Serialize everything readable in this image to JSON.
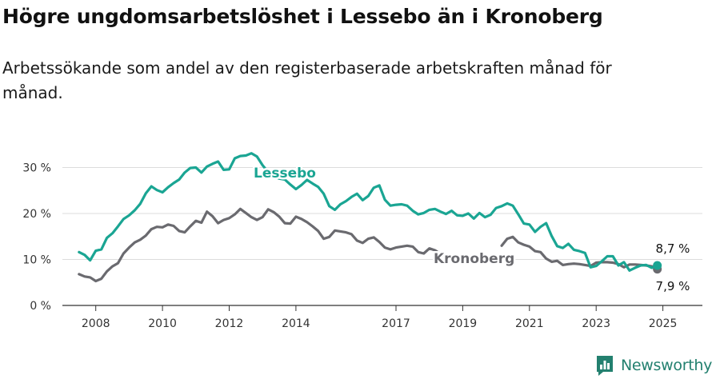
{
  "header": {
    "title": "Högre ungdomsarbetslöshet i Lessebo än i Kronoberg",
    "subtitle": "Arbetssökande som andel av den registerbaserade arbetskraften månad för månad."
  },
  "brand": {
    "name": "Newsworthy",
    "color": "#23806f"
  },
  "chart_data": {
    "type": "line",
    "title": "Högre ungdomsarbetslöshet i Lessebo än i Kronoberg",
    "subtitle": "Arbetssökande som andel av den registerbaserade arbetskraften månad för månad.",
    "xlabel": "",
    "ylabel": "",
    "x_ticks": [
      "2008",
      "2010",
      "2012",
      "2014",
      "2017",
      "2019",
      "2021",
      "2023",
      "2025"
    ],
    "y_ticks": [
      "0 %",
      "10 %",
      "20 %",
      "30 %"
    ],
    "ylim": [
      0,
      35
    ],
    "grid": "horizontal",
    "legend": "direct labels on lines",
    "series": [
      {
        "name": "Lessebo",
        "color": "#1aa593",
        "end_label": "8,7 %",
        "points": [
          [
            "2008-01",
            11.6
          ],
          [
            "2008-03",
            11.0
          ],
          [
            "2008-05",
            9.8
          ],
          [
            "2008-07",
            11.9
          ],
          [
            "2008-09",
            12.2
          ],
          [
            "2008-11",
            14.7
          ],
          [
            "2009-01",
            15.7
          ],
          [
            "2009-03",
            17.2
          ],
          [
            "2009-05",
            18.8
          ],
          [
            "2009-07",
            19.6
          ],
          [
            "2009-09",
            20.7
          ],
          [
            "2009-11",
            22.1
          ],
          [
            "2010-01",
            24.4
          ],
          [
            "2010-03",
            25.9
          ],
          [
            "2010-05",
            25.1
          ],
          [
            "2010-07",
            24.6
          ],
          [
            "2010-09",
            25.7
          ],
          [
            "2010-11",
            26.6
          ],
          [
            "2011-01",
            27.4
          ],
          [
            "2011-03",
            28.9
          ],
          [
            "2011-05",
            29.9
          ],
          [
            "2011-07",
            30.0
          ],
          [
            "2011-09",
            28.9
          ],
          [
            "2011-11",
            30.2
          ],
          [
            "2012-01",
            30.8
          ],
          [
            "2012-03",
            31.3
          ],
          [
            "2012-05",
            29.5
          ],
          [
            "2012-07",
            29.6
          ],
          [
            "2012-09",
            32.0
          ],
          [
            "2012-11",
            32.5
          ],
          [
            "2013-01",
            32.6
          ],
          [
            "2013-03",
            33.1
          ],
          [
            "2013-05",
            32.4
          ],
          [
            "2013-07",
            30.5
          ],
          [
            "2013-09",
            29.0
          ],
          [
            "2013-11",
            28.0
          ],
          [
            "2014-01",
            27.6
          ],
          [
            "2014-03",
            27.4
          ],
          [
            "2014-05",
            26.3
          ],
          [
            "2014-07",
            25.3
          ],
          [
            "2014-09",
            26.2
          ],
          [
            "2014-11",
            27.3
          ],
          [
            "2015-01",
            26.5
          ],
          [
            "2015-03",
            25.8
          ],
          [
            "2015-05",
            24.3
          ],
          [
            "2015-07",
            21.6
          ],
          [
            "2015-09",
            20.8
          ],
          [
            "2015-11",
            22.0
          ],
          [
            "2016-01",
            22.7
          ],
          [
            "2016-03",
            23.6
          ],
          [
            "2016-05",
            24.3
          ],
          [
            "2016-07",
            22.9
          ],
          [
            "2016-09",
            23.8
          ],
          [
            "2016-11",
            25.6
          ],
          [
            "2017-01",
            26.1
          ],
          [
            "2017-03",
            23.0
          ],
          [
            "2017-05",
            21.7
          ],
          [
            "2017-07",
            21.9
          ],
          [
            "2017-09",
            22.0
          ],
          [
            "2017-11",
            21.7
          ],
          [
            "2018-01",
            20.6
          ],
          [
            "2018-03",
            19.8
          ],
          [
            "2018-05",
            20.1
          ],
          [
            "2018-07",
            20.8
          ],
          [
            "2018-09",
            21.0
          ],
          [
            "2018-11",
            20.4
          ],
          [
            "2019-01",
            19.9
          ],
          [
            "2019-03",
            20.6
          ],
          [
            "2019-05",
            19.6
          ],
          [
            "2019-07",
            19.5
          ],
          [
            "2019-09",
            20.0
          ],
          [
            "2019-11",
            18.9
          ],
          [
            "2020-01",
            20.1
          ],
          [
            "2020-03",
            19.2
          ],
          [
            "2020-05",
            19.7
          ],
          [
            "2020-07",
            21.2
          ],
          [
            "2020-09",
            21.6
          ],
          [
            "2020-11",
            22.2
          ],
          [
            "2021-01",
            21.7
          ],
          [
            "2021-03",
            19.8
          ],
          [
            "2021-05",
            17.8
          ],
          [
            "2021-07",
            17.6
          ],
          [
            "2021-09",
            16.0
          ],
          [
            "2021-11",
            17.1
          ],
          [
            "2022-01",
            17.9
          ],
          [
            "2022-03",
            15.1
          ],
          [
            "2022-05",
            12.9
          ],
          [
            "2022-07",
            12.5
          ],
          [
            "2022-09",
            13.4
          ],
          [
            "2022-11",
            12.1
          ],
          [
            "2023-01",
            11.8
          ],
          [
            "2023-03",
            11.4
          ],
          [
            "2023-05",
            8.3
          ],
          [
            "2023-07",
            8.6
          ],
          [
            "2023-09",
            9.6
          ],
          [
            "2023-11",
            10.7
          ],
          [
            "2024-01",
            10.7
          ],
          [
            "2024-03",
            8.7
          ],
          [
            "2024-05",
            9.4
          ],
          [
            "2024-07",
            7.6
          ],
          [
            "2024-09",
            8.2
          ],
          [
            "2024-11",
            8.7
          ],
          [
            "2025-01",
            8.8
          ],
          [
            "2025-03",
            8.2
          ],
          [
            "2025-05",
            8.7
          ]
        ]
      },
      {
        "name": "Kronoberg",
        "color": "#6a6a6f",
        "end_label": "7,9 %",
        "points": [
          [
            "2008-01",
            6.8
          ],
          [
            "2008-03",
            6.3
          ],
          [
            "2008-05",
            6.1
          ],
          [
            "2008-07",
            5.3
          ],
          [
            "2008-09",
            5.8
          ],
          [
            "2008-11",
            7.4
          ],
          [
            "2009-01",
            8.5
          ],
          [
            "2009-03",
            9.2
          ],
          [
            "2009-05",
            11.3
          ],
          [
            "2009-07",
            12.6
          ],
          [
            "2009-09",
            13.7
          ],
          [
            "2009-11",
            14.3
          ],
          [
            "2010-01",
            15.2
          ],
          [
            "2010-03",
            16.6
          ],
          [
            "2010-05",
            17.1
          ],
          [
            "2010-07",
            17.0
          ],
          [
            "2010-09",
            17.6
          ],
          [
            "2010-11",
            17.3
          ],
          [
            "2011-01",
            16.2
          ],
          [
            "2011-03",
            15.9
          ],
          [
            "2011-05",
            17.2
          ],
          [
            "2011-07",
            18.4
          ],
          [
            "2011-09",
            18.0
          ],
          [
            "2011-11",
            20.4
          ],
          [
            "2012-01",
            19.4
          ],
          [
            "2012-03",
            17.9
          ],
          [
            "2012-05",
            18.6
          ],
          [
            "2012-07",
            19.0
          ],
          [
            "2012-09",
            19.8
          ],
          [
            "2012-11",
            21.0
          ],
          [
            "2013-01",
            20.1
          ],
          [
            "2013-03",
            19.2
          ],
          [
            "2013-05",
            18.6
          ],
          [
            "2013-07",
            19.2
          ],
          [
            "2013-09",
            20.9
          ],
          [
            "2013-11",
            20.3
          ],
          [
            "2014-01",
            19.3
          ],
          [
            "2014-03",
            17.9
          ],
          [
            "2014-05",
            17.8
          ],
          [
            "2014-07",
            19.3
          ],
          [
            "2014-09",
            18.8
          ],
          [
            "2014-11",
            18.1
          ],
          [
            "2015-01",
            17.2
          ],
          [
            "2015-03",
            16.2
          ],
          [
            "2015-05",
            14.5
          ],
          [
            "2015-07",
            14.9
          ],
          [
            "2015-09",
            16.3
          ],
          [
            "2015-11",
            16.1
          ],
          [
            "2016-01",
            15.9
          ],
          [
            "2016-03",
            15.5
          ],
          [
            "2016-05",
            14.1
          ],
          [
            "2016-07",
            13.6
          ],
          [
            "2016-09",
            14.5
          ],
          [
            "2016-11",
            14.8
          ],
          [
            "2017-01",
            13.8
          ],
          [
            "2017-03",
            12.6
          ],
          [
            "2017-05",
            12.2
          ],
          [
            "2017-07",
            12.6
          ],
          [
            "2017-09",
            12.8
          ],
          [
            "2017-11",
            13.0
          ],
          [
            "2018-01",
            12.8
          ],
          [
            "2018-03",
            11.6
          ],
          [
            "2018-05",
            11.3
          ],
          [
            "2018-07",
            12.4
          ],
          [
            "2018-09",
            12.0
          ],
          [
            "2018-11",
            11.2
          ],
          [
            "2019-01",
            11.0
          ],
          [
            "2020-09",
            13.0
          ],
          [
            "2020-11",
            14.5
          ],
          [
            "2021-01",
            14.9
          ],
          [
            "2021-03",
            13.7
          ],
          [
            "2021-05",
            13.2
          ],
          [
            "2021-07",
            12.8
          ],
          [
            "2021-09",
            11.8
          ],
          [
            "2021-11",
            11.6
          ],
          [
            "2022-01",
            10.2
          ],
          [
            "2022-03",
            9.5
          ],
          [
            "2022-05",
            9.7
          ],
          [
            "2022-07",
            8.8
          ],
          [
            "2022-09",
            9.0
          ],
          [
            "2022-11",
            9.1
          ],
          [
            "2023-01",
            9.0
          ],
          [
            "2023-03",
            8.8
          ],
          [
            "2023-05",
            8.6
          ],
          [
            "2023-07",
            9.3
          ],
          [
            "2023-09",
            9.4
          ],
          [
            "2023-11",
            9.4
          ],
          [
            "2024-01",
            9.3
          ],
          [
            "2024-03",
            9.0
          ],
          [
            "2024-05",
            8.3
          ],
          [
            "2024-07",
            8.9
          ],
          [
            "2024-09",
            8.9
          ],
          [
            "2024-11",
            8.8
          ],
          [
            "2025-01",
            8.7
          ],
          [
            "2025-03",
            8.5
          ],
          [
            "2025-05",
            7.9
          ]
        ]
      }
    ]
  }
}
